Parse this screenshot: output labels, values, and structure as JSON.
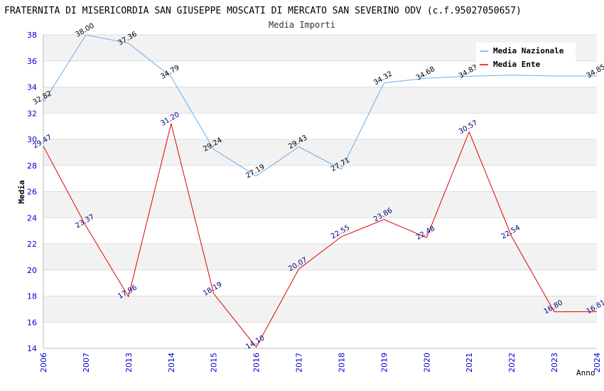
{
  "chart_data": {
    "type": "line",
    "title": "FRATERNITA DI MISERICORDIA SAN GIUSEPPE MOSCATI DI MERCATO SAN SEVERINO ODV (c.f.95027050657)",
    "subtitle": "Media Importi",
    "xlabel": "Anno",
    "ylabel": "Media",
    "ylim": [
      14,
      38
    ],
    "yticks": [
      "14",
      "16",
      "18",
      "20",
      "22",
      "24",
      "26",
      "28",
      "30",
      "32",
      "34",
      "36",
      "38"
    ],
    "categories": [
      "2006",
      "2007",
      "2013",
      "2014",
      "2015",
      "2016",
      "2017",
      "2018",
      "2019",
      "2020",
      "2021",
      "2022",
      "2023",
      "2024"
    ],
    "series": [
      {
        "name": "Media Nazionale",
        "color": "#6aaee8",
        "values": [
          32.82,
          38.0,
          37.36,
          34.79,
          29.24,
          27.19,
          29.43,
          27.71,
          34.32,
          34.68,
          34.83,
          34.92,
          34.85,
          34.85
        ],
        "labels": [
          "32.82",
          "38.00",
          "37.36",
          "34.79",
          "29.24",
          "27.19",
          "29.43",
          "27.71",
          "34.32",
          "34.68",
          "34.83",
          "",
          "",
          "34.85"
        ]
      },
      {
        "name": "Media Ente",
        "color": "#e00000",
        "values": [
          29.47,
          23.37,
          17.96,
          31.2,
          18.19,
          14.1,
          20.07,
          22.55,
          23.86,
          22.48,
          30.57,
          22.54,
          16.8,
          16.81
        ],
        "labels": [
          "29.47",
          "23.37",
          "17.96",
          "31.20",
          "18.19",
          "14.10",
          "20.07",
          "22.55",
          "23.86",
          "22.48",
          "30.57",
          "22.54",
          "16.80",
          "16.81"
        ]
      }
    ],
    "legend_position": "top-right"
  }
}
